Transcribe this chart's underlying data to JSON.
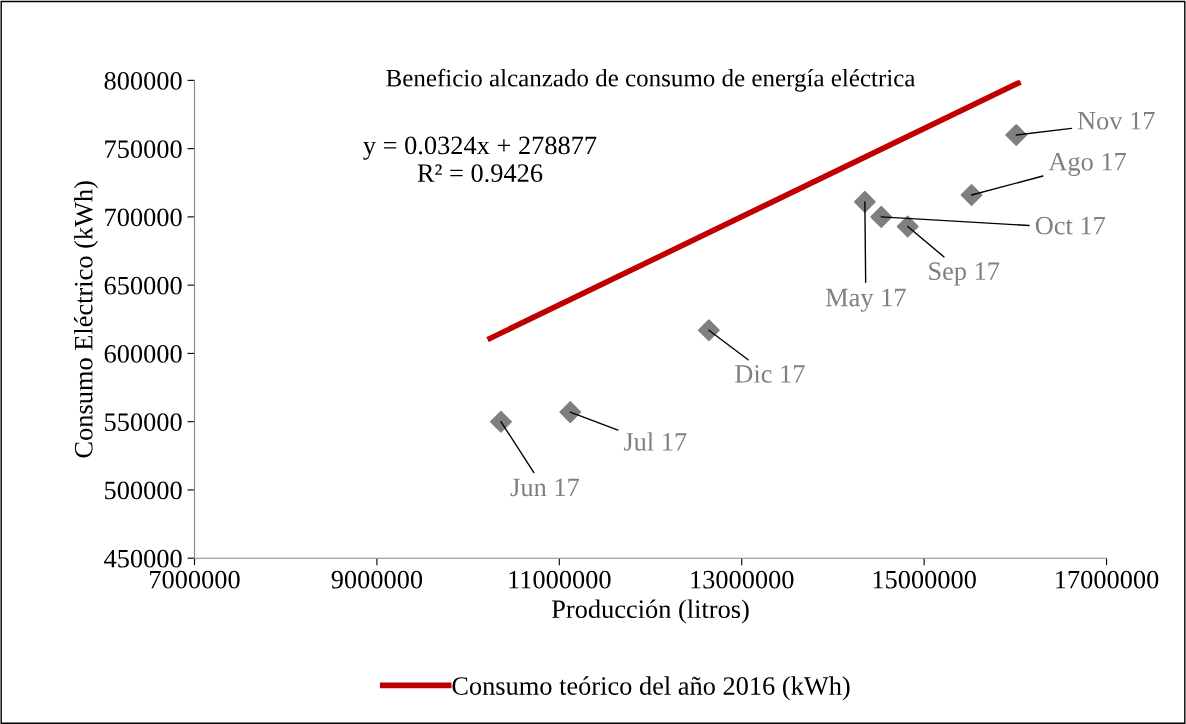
{
  "chart_data": {
    "type": "scatter",
    "title": "Beneficio alcanzado de consumo de energía eléctrica",
    "xlabel": "Producción (litros)",
    "ylabel": "Consumo Eléctrico (kWh)",
    "xlim": [
      7000000,
      17000000
    ],
    "xticks": [
      7000000,
      9000000,
      11000000,
      13000000,
      15000000,
      17000000
    ],
    "ylim": [
      450000,
      800000
    ],
    "yticks": [
      450000,
      500000,
      550000,
      600000,
      650000,
      700000,
      750000,
      800000
    ],
    "grid": false,
    "legend": "bottom",
    "marker": "diamond",
    "series": [
      {
        "color": "#7f7f7f",
        "x": [
          10360000,
          11120000,
          12640000,
          14350000,
          14530000,
          14820000,
          15520000,
          16010000
        ],
        "values": [
          550000,
          557000,
          617000,
          711000,
          700000,
          693000,
          716000,
          760000
        ],
        "value_labels": [
          "Jun 17",
          "Jul 17",
          "Dic 17",
          "May 17",
          "Oct 17",
          "Sep 17",
          "Ago 17",
          "Nov 17"
        ]
      },
      {
        "type": "line",
        "name": "Consumo teórico del año 2016 (kWh)",
        "color": "#c00000",
        "marker": "none",
        "x": [
          10240000,
          16030000
        ],
        "values": [
          611000,
          798000
        ]
      }
    ],
    "annotations": [
      "y = 0.0324x + 278877\nR² = 0.9426"
    ]
  }
}
